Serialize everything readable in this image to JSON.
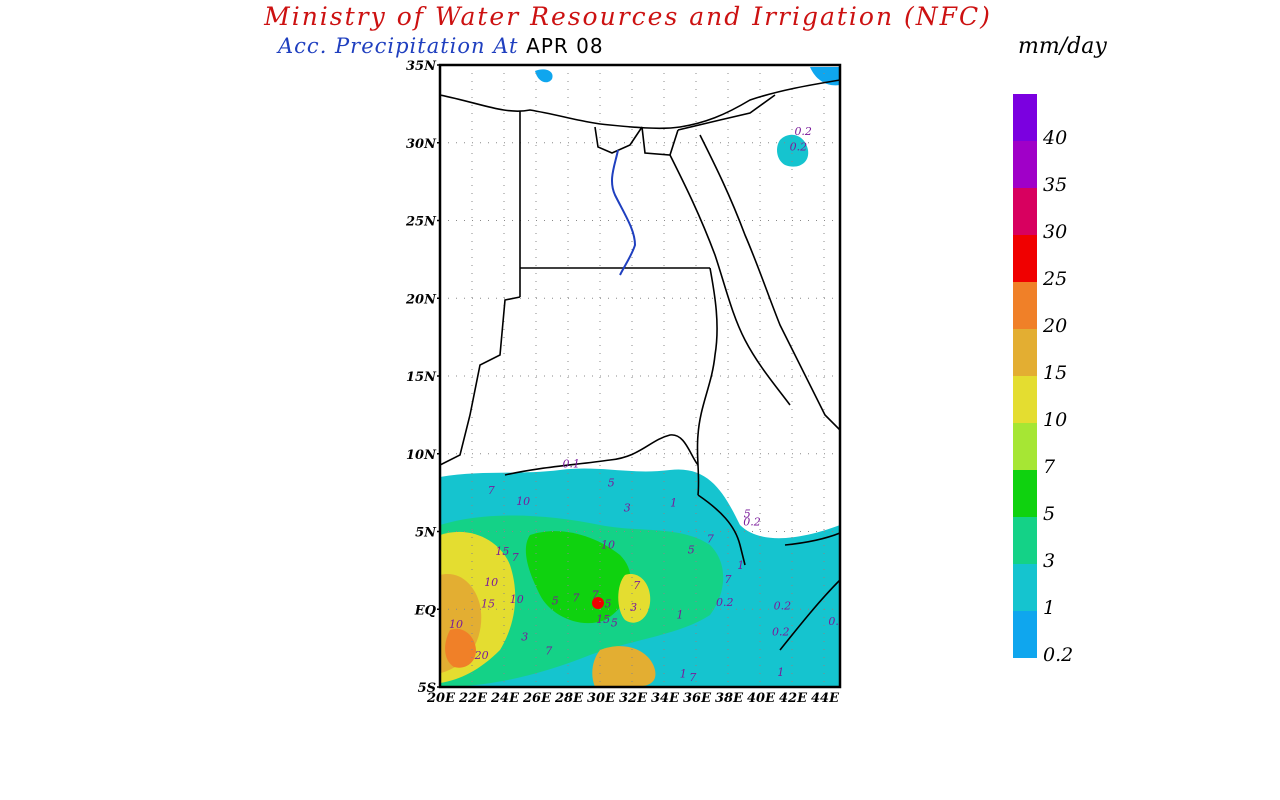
{
  "header": {
    "title": "Ministry of Water Resources and Irrigation (NFC)",
    "subtitle_prefix": "Acc. Precipitation At",
    "date": "APR 08",
    "unit": "mm/day"
  },
  "map": {
    "lat_labels": [
      "35N",
      "30N",
      "25N",
      "20N",
      "15N",
      "10N",
      "5N",
      "EQ",
      "5S"
    ],
    "lon_labels": [
      "20E",
      "22E",
      "24E",
      "26E",
      "28E",
      "30E",
      "32E",
      "34E",
      "36E",
      "38E",
      "40E",
      "42E",
      "44E"
    ],
    "lat_range": [
      -5,
      35
    ],
    "lon_range": [
      20,
      45
    ],
    "grid": "dotted",
    "contour_labels": [
      {
        "text": "0.2",
        "lon": 42.7,
        "lat": 30.5
      },
      {
        "text": "0.2",
        "lon": 42.4,
        "lat": 29.5
      },
      {
        "text": "0.1",
        "lon": 28.2,
        "lat": 9.1
      },
      {
        "text": "5",
        "lon": 30.7,
        "lat": 7.9
      },
      {
        "text": "7",
        "lon": 23.2,
        "lat": 7.4
      },
      {
        "text": "10",
        "lon": 25.2,
        "lat": 6.7
      },
      {
        "text": "3",
        "lon": 31.7,
        "lat": 6.3
      },
      {
        "text": "1",
        "lon": 34.6,
        "lat": 6.6
      },
      {
        "text": "5",
        "lon": 39.2,
        "lat": 5.9
      },
      {
        "text": "0.2",
        "lon": 39.5,
        "lat": 5.4
      },
      {
        "text": "10",
        "lon": 30.5,
        "lat": 3.9
      },
      {
        "text": "5",
        "lon": 35.7,
        "lat": 3.6
      },
      {
        "text": "7",
        "lon": 36.9,
        "lat": 4.3
      },
      {
        "text": "15",
        "lon": 23.9,
        "lat": 3.5
      },
      {
        "text": "7",
        "lon": 24.7,
        "lat": 3.1
      },
      {
        "text": "1",
        "lon": 38.8,
        "lat": 2.6
      },
      {
        "text": "7",
        "lon": 38.0,
        "lat": 1.7
      },
      {
        "text": "10",
        "lon": 23.2,
        "lat": 1.5
      },
      {
        "text": "10",
        "lon": 24.8,
        "lat": 0.4
      },
      {
        "text": "15",
        "lon": 23.0,
        "lat": 0.1
      },
      {
        "text": "5",
        "lon": 27.2,
        "lat": 0.3
      },
      {
        "text": "7",
        "lon": 28.5,
        "lat": 0.5
      },
      {
        "text": "7",
        "lon": 29.7,
        "lat": 0.7
      },
      {
        "text": "5",
        "lon": 30.5,
        "lat": 0.1
      },
      {
        "text": "7",
        "lon": 32.3,
        "lat": 1.3
      },
      {
        "text": "3",
        "lon": 32.1,
        "lat": -0.1
      },
      {
        "text": "0.2",
        "lon": 37.8,
        "lat": 0.2
      },
      {
        "text": "1",
        "lon": 35.0,
        "lat": -0.6
      },
      {
        "text": "15",
        "lon": 30.2,
        "lat": -0.9
      },
      {
        "text": "5",
        "lon": 30.9,
        "lat": -1.1
      },
      {
        "text": "10",
        "lon": 21.0,
        "lat": -1.2
      },
      {
        "text": "3",
        "lon": 25.3,
        "lat": -2.0
      },
      {
        "text": "0.2",
        "lon": 41.4,
        "lat": 0.0
      },
      {
        "text": "0.2",
        "lon": 41.3,
        "lat": -1.7
      },
      {
        "text": "0.",
        "lon": 44.6,
        "lat": -1.0
      },
      {
        "text": "7",
        "lon": 26.8,
        "lat": -2.9
      },
      {
        "text": "20",
        "lon": 22.6,
        "lat": -3.2
      },
      {
        "text": "1",
        "lon": 41.3,
        "lat": -4.3
      },
      {
        "text": "1",
        "lon": 35.2,
        "lat": -4.4
      },
      {
        "text": "7",
        "lon": 35.8,
        "lat": -4.6
      }
    ]
  },
  "legend": {
    "colors": [
      "#0fa6ee",
      "#15c4cf",
      "#14d287",
      "#0fd20f",
      "#a6e634",
      "#e4dd30",
      "#e3ae32",
      "#f08028",
      "#f00000",
      "#d8005f",
      "#a000c8",
      "#7b00e0"
    ],
    "labels": [
      "0.2",
      "1",
      "3",
      "5",
      "7",
      "10",
      "15",
      "20",
      "25",
      "30",
      "35",
      "40"
    ]
  }
}
